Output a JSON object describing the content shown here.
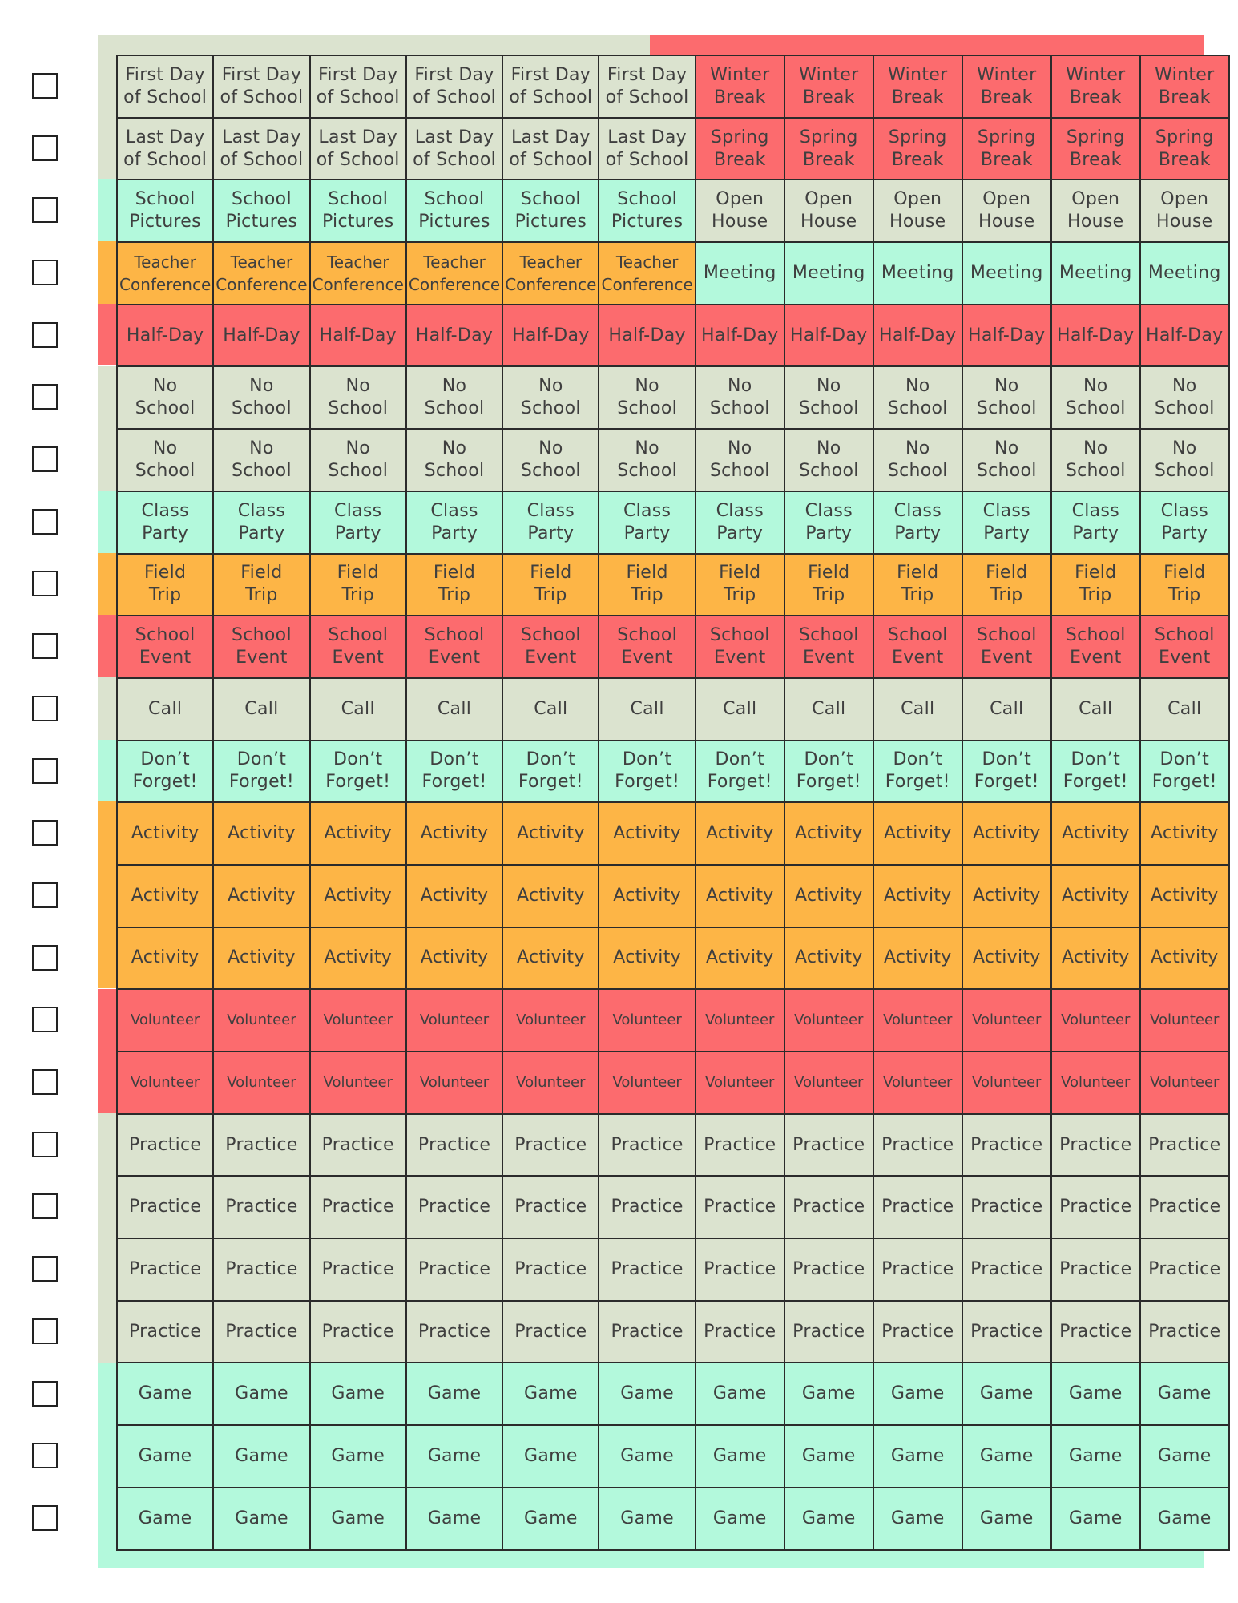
{
  "colors": {
    "sage": "#dbe3cf",
    "mint": "#b3f9dc",
    "orange": "#fdb546",
    "red": "#fc6b6e",
    "border": "#2b2b2b",
    "text": "#3f3f3f"
  },
  "rows": [
    {
      "cells": [
        {
          "label": "First Day\nof School",
          "color": "sage",
          "span": 6
        },
        {
          "label": "Winter\nBreak",
          "color": "red",
          "span": 6
        }
      ]
    },
    {
      "cells": [
        {
          "label": "Last Day\nof School",
          "color": "sage",
          "span": 6
        },
        {
          "label": "Spring\nBreak",
          "color": "red",
          "span": 6
        }
      ]
    },
    {
      "cells": [
        {
          "label": "School\nPictures",
          "color": "mint",
          "span": 6
        },
        {
          "label": "Open\nHouse",
          "color": "sage",
          "span": 6
        }
      ]
    },
    {
      "cells": [
        {
          "label": "Teacher\nConference",
          "color": "orange",
          "span": 6,
          "size": "small"
        },
        {
          "label": "Meeting",
          "color": "mint",
          "span": 6
        }
      ]
    },
    {
      "cells": [
        {
          "label": "Half-Day",
          "color": "red",
          "span": 12
        }
      ]
    },
    {
      "cells": [
        {
          "label": "No\nSchool",
          "color": "sage",
          "span": 12
        }
      ]
    },
    {
      "cells": [
        {
          "label": "No\nSchool",
          "color": "sage",
          "span": 12
        }
      ]
    },
    {
      "cells": [
        {
          "label": "Class\nParty",
          "color": "mint",
          "span": 12
        }
      ]
    },
    {
      "cells": [
        {
          "label": "Field\nTrip",
          "color": "orange",
          "span": 12
        }
      ]
    },
    {
      "cells": [
        {
          "label": "School\nEvent",
          "color": "red",
          "span": 12
        }
      ]
    },
    {
      "cells": [
        {
          "label": "Call",
          "color": "sage",
          "span": 12
        }
      ]
    },
    {
      "cells": [
        {
          "label": "Don’t\nForget!",
          "color": "mint",
          "span": 12
        }
      ]
    },
    {
      "cells": [
        {
          "label": "Activity",
          "color": "orange",
          "span": 12
        }
      ]
    },
    {
      "cells": [
        {
          "label": "Activity",
          "color": "orange",
          "span": 12
        }
      ]
    },
    {
      "cells": [
        {
          "label": "Activity",
          "color": "orange",
          "span": 12
        }
      ]
    },
    {
      "cells": [
        {
          "label": "Volunteer",
          "color": "red",
          "span": 12,
          "size": "tiny"
        }
      ]
    },
    {
      "cells": [
        {
          "label": "Volunteer",
          "color": "red",
          "span": 12,
          "size": "tiny"
        }
      ]
    },
    {
      "cells": [
        {
          "label": "Practice",
          "color": "sage",
          "span": 12
        }
      ]
    },
    {
      "cells": [
        {
          "label": "Practice",
          "color": "sage",
          "span": 12
        }
      ]
    },
    {
      "cells": [
        {
          "label": "Practice",
          "color": "sage",
          "span": 12
        }
      ]
    },
    {
      "cells": [
        {
          "label": "Practice",
          "color": "sage",
          "span": 12
        }
      ]
    },
    {
      "cells": [
        {
          "label": "Game",
          "color": "mint",
          "span": 12
        }
      ]
    },
    {
      "cells": [
        {
          "label": "Game",
          "color": "mint",
          "span": 12
        }
      ]
    },
    {
      "cells": [
        {
          "label": "Game",
          "color": "mint",
          "span": 12
        }
      ]
    }
  ]
}
